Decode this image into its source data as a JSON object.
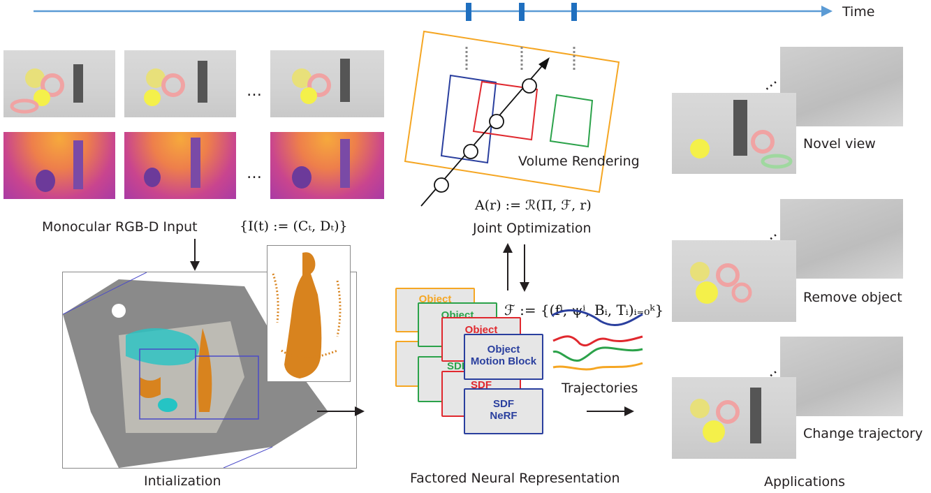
{
  "timeline": {
    "label": "Time"
  },
  "input": {
    "caption": "Monocular RGB-D Input",
    "formula": "{I(t) := (Cₜ, Dₜ)}",
    "ellipsis": "…"
  },
  "init": {
    "caption": "Intialization"
  },
  "render": {
    "caption": "Volume Rendering",
    "equation": "A(r) := ℛ(Π, ℱ, r)",
    "joint": "Joint Optimization"
  },
  "factored": {
    "formula": "ℱ := {(fⁱ, ψⁱ, Bᵢ, Tᵢ)ᵢ₌₀ᵏ}",
    "card_object": "Object",
    "card_motion_short": "Mo",
    "card_motion_block": "Motion Block",
    "card_sdf": "SDF",
    "card_nerf": "NeRF",
    "trajectories": "Trajectories",
    "caption": "Factored Neural Representation"
  },
  "applications": {
    "novel_view": "Novel view",
    "remove_object": "Remove object",
    "change_trajectory": "Change trajectory",
    "caption": "Applications"
  }
}
